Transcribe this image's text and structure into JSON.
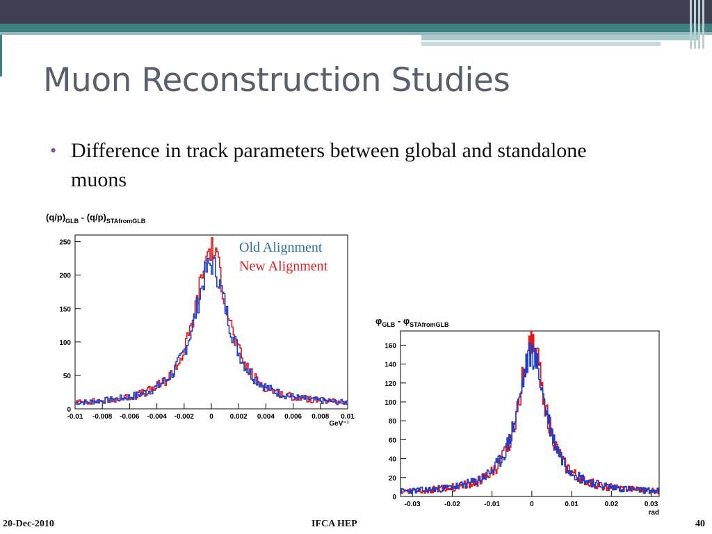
{
  "slide": {
    "title": "Muon Reconstruction Studies",
    "bullet": "Difference in track parameters between global and standalone muons",
    "footer_left": "20-Dec-2010",
    "footer_center": "IFCA HEP",
    "footer_right": "40"
  },
  "colors": {
    "old_alignment": "#1a3fd0",
    "new_alignment": "#e01818",
    "legend_old": "#2f6fb0",
    "legend_new": "#e02020"
  },
  "chart_data": [
    {
      "type": "line",
      "title": "(q/p)GLB - (q/p)STAfromGLB",
      "title_main": "(q/p)",
      "title_sub1": "GLB",
      "title_mid": " - (q/p)",
      "title_sub2": "STAfromGLB",
      "xlabel": "GeV⁻¹",
      "ylabel": "",
      "xlim": [
        -0.01,
        0.01
      ],
      "ylim": [
        0,
        260
      ],
      "xticks": [
        -0.01,
        -0.008,
        -0.006,
        -0.004,
        -0.002,
        0,
        0.002,
        0.004,
        0.006,
        0.008,
        0.01
      ],
      "xtick_labels": [
        "-0.01",
        "-0.008",
        "-0.006",
        "-0.004",
        "-0.002",
        "0",
        "0.002",
        "0.004",
        "0.006",
        "0.008",
        "0.01"
      ],
      "yticks": [
        0,
        50,
        100,
        150,
        200,
        250
      ],
      "ytick_labels": [
        "0",
        "50",
        "100",
        "150",
        "200",
        "250"
      ],
      "legend": [
        "Old Alignment",
        "New Alignment"
      ],
      "legend_position": "top-right",
      "series": [
        {
          "name": "Old Alignment",
          "peak": 212,
          "center": 0.0,
          "width": 0.0015
        },
        {
          "name": "New Alignment",
          "peak": 235,
          "center": 0.0,
          "width": 0.0014
        }
      ]
    },
    {
      "type": "line",
      "title": "φGLB - φSTAfromGLB",
      "title_main": "φ",
      "title_sub1": "GLB",
      "title_mid": " - φ",
      "title_sub2": "STAfromGLB",
      "xlabel": "rad",
      "ylabel": "",
      "xlim": [
        -0.033,
        0.032
      ],
      "ylim": [
        0,
        175
      ],
      "xticks": [
        -0.03,
        -0.02,
        -0.01,
        0,
        0.01,
        0.02,
        0.03
      ],
      "xtick_labels": [
        "-0.03",
        "-0.02",
        "-0.01",
        "0",
        "0.01",
        "0.02",
        "0.03"
      ],
      "yticks": [
        0,
        20,
        40,
        60,
        80,
        100,
        120,
        140,
        160
      ],
      "ytick_labels": [
        "0",
        "20",
        "40",
        "60",
        "80",
        "100",
        "120",
        "140",
        "160"
      ],
      "series": [
        {
          "name": "Old Alignment",
          "peak": 148,
          "center": 0.0,
          "width": 0.0042
        },
        {
          "name": "New Alignment",
          "peak": 162,
          "center": 0.0,
          "width": 0.0038
        }
      ]
    }
  ]
}
